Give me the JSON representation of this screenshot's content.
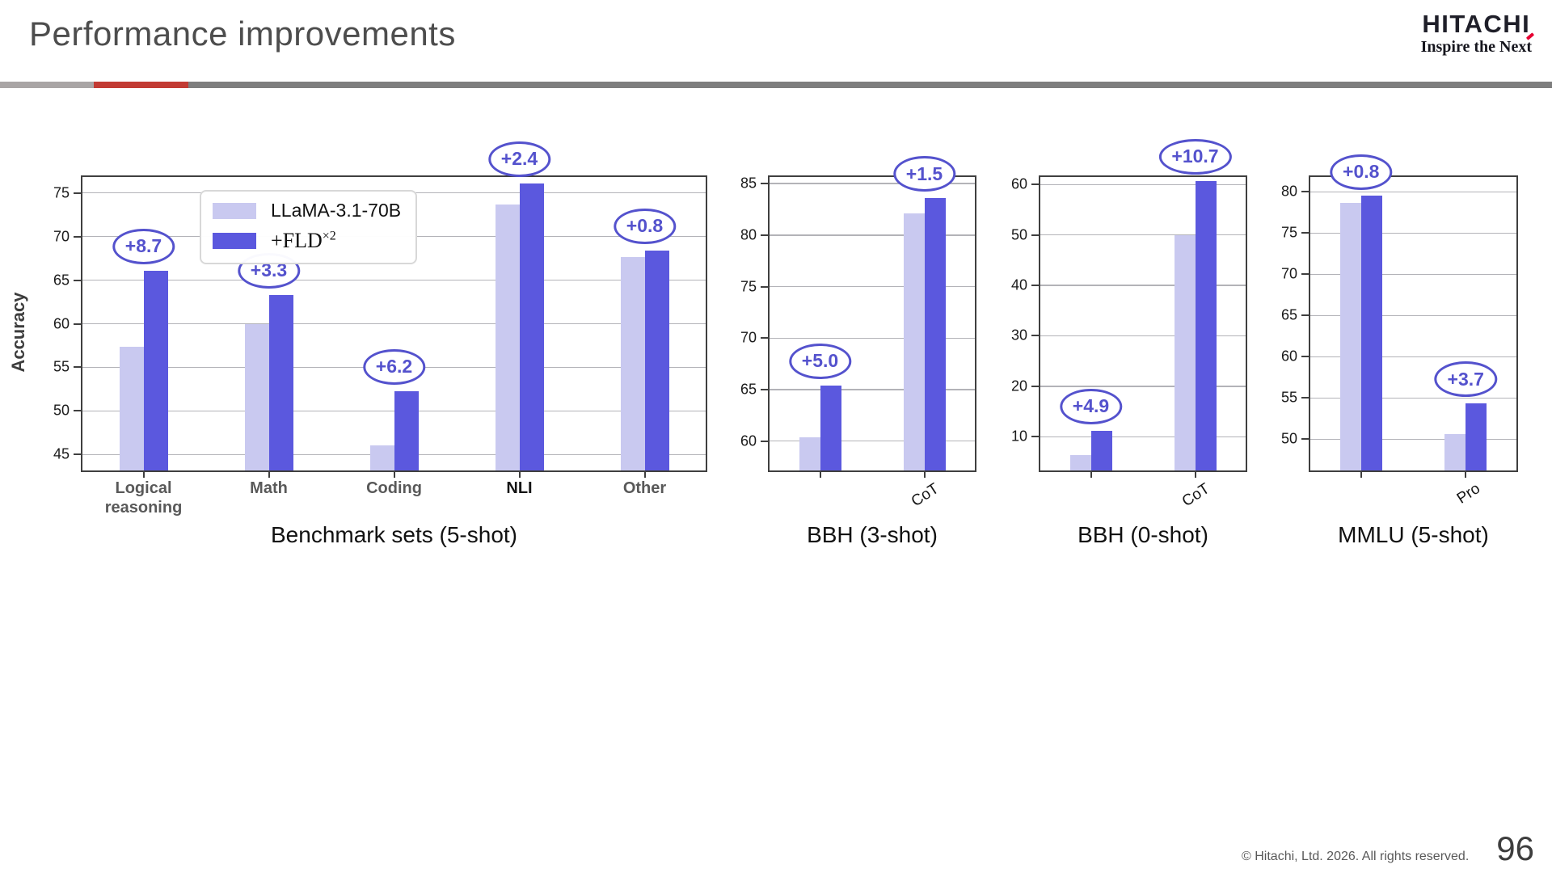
{
  "slide": {
    "title": "Performance improvements",
    "footer": "© Hitachi, Ltd. 2026. All rights reserved.",
    "page_number": "96"
  },
  "logo": {
    "name": "HITACHI",
    "slogan_pre": "Inspire the Ne",
    "slogan_end": "xt"
  },
  "legend": {
    "fld_base": "+FLD",
    "fld_sup": "×2"
  },
  "colors": {
    "series_light": "#c9c9f0",
    "series_dark": "#5b58de",
    "annotation": "#5452cd",
    "divider_red": "#c23b33",
    "divider_gray": "#7e7e7e",
    "divider_light_gray": "#a9a5a5"
  },
  "chart_data": [
    {
      "type": "bar",
      "title": "",
      "xlabel": "Benchmark sets (5-shot)",
      "ylabel": "Accuracy",
      "ylim": [
        43,
        77
      ],
      "yticks": [
        45,
        50,
        55,
        60,
        65,
        70,
        75
      ],
      "grid": true,
      "legend_position": "upper center",
      "categories": [
        "Logical reasoning",
        "Math",
        "Coding",
        "NLI",
        "Other"
      ],
      "emphasized_category": "NLI",
      "series": [
        {
          "name": "LLaMA-3.1-70B",
          "values": [
            57.4,
            60.0,
            46.1,
            73.7,
            67.6
          ]
        },
        {
          "name": "+FLD×2",
          "values": [
            66.1,
            63.3,
            52.3,
            76.1,
            68.4
          ]
        }
      ],
      "annotations": [
        "+8.7",
        "+3.3",
        "+6.2",
        "+2.4",
        "+0.8"
      ]
    },
    {
      "type": "bar",
      "title": "",
      "xlabel": "BBH (3-shot)",
      "ylabel": "",
      "ylim": [
        57,
        85.8
      ],
      "yticks": [
        60,
        65,
        70,
        75,
        80,
        85
      ],
      "grid": true,
      "categories": [
        "",
        "CoT"
      ],
      "series": [
        {
          "name": "LLaMA-3.1-70B",
          "values": [
            60.4,
            82.1
          ]
        },
        {
          "name": "+FLD×2",
          "values": [
            65.4,
            83.6
          ]
        }
      ],
      "annotations": [
        "+5.0",
        "+1.5"
      ]
    },
    {
      "type": "bar",
      "title": "",
      "xlabel": "BBH (0-shot)",
      "ylabel": "",
      "ylim": [
        3,
        61.8
      ],
      "yticks": [
        10,
        20,
        30,
        40,
        50,
        60
      ],
      "grid": true,
      "categories": [
        "",
        "CoT"
      ],
      "series": [
        {
          "name": "LLaMA-3.1-70B",
          "values": [
            6.3,
            50.0
          ]
        },
        {
          "name": "+FLD×2",
          "values": [
            11.2,
            60.7
          ]
        }
      ],
      "annotations": [
        "+4.9",
        "+10.7"
      ]
    },
    {
      "type": "bar",
      "title": "",
      "xlabel": "MMLU (5-shot)",
      "ylabel": "",
      "ylim": [
        46,
        82
      ],
      "yticks": [
        50,
        55,
        60,
        65,
        70,
        75,
        80
      ],
      "grid": true,
      "categories": [
        "",
        "Pro"
      ],
      "series": [
        {
          "name": "LLaMA-3.1-70B",
          "values": [
            78.7,
            50.6
          ]
        },
        {
          "name": "+FLD×2",
          "values": [
            79.5,
            54.3
          ]
        }
      ],
      "annotations": [
        "+0.8",
        "+3.7"
      ]
    }
  ]
}
